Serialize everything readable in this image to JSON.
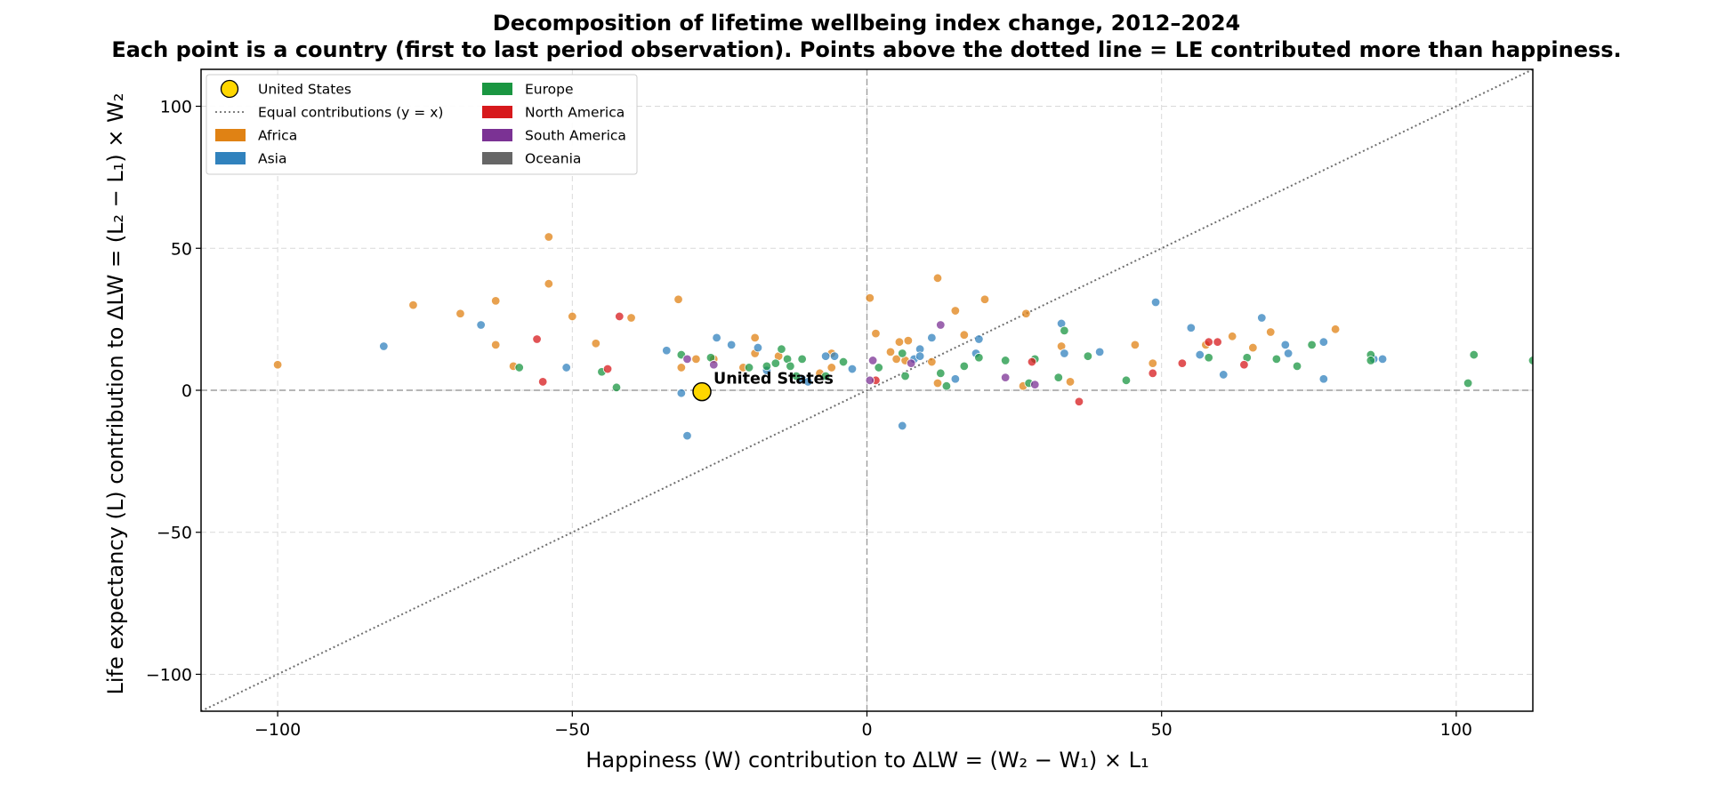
{
  "chart_data": {
    "type": "scatter",
    "title": "Decomposition of lifetime wellbeing index change, 2012–2024",
    "subtitle": "Each point is a country (first to last period observation). Points above the dotted line = LE contributed more than happiness.",
    "xlabel": "Happiness (W) contribution to ΔLW  =  (W₂ − W₁) × L₁",
    "ylabel": "Life expectancy (L) contribution to ΔLW  =  (L₂ − L₁) × W₂",
    "xlim": [
      -113,
      113
    ],
    "ylim": [
      -113,
      113
    ],
    "x_ticks": [
      -100,
      -50,
      0,
      50,
      100
    ],
    "y_ticks": [
      -100,
      -50,
      0,
      50,
      100
    ],
    "x_tick_labels": [
      "−100",
      "−50",
      "0",
      "50",
      "100"
    ],
    "y_tick_labels": [
      "−100",
      "−50",
      "0",
      "50",
      "100"
    ],
    "grid": true,
    "reference_lines": [
      "x = 0",
      "y = 0",
      "y = x"
    ],
    "legend_position": "top-left",
    "legend": [
      {
        "label": "United States",
        "kind": "highlight-marker",
        "color": "#FFD700"
      },
      {
        "label": "Equal contributions (y = x)",
        "kind": "dotted-line",
        "color": "#808080"
      },
      {
        "label": "Africa",
        "kind": "patch",
        "color": "#E08214"
      },
      {
        "label": "Asia",
        "kind": "patch",
        "color": "#3182BD"
      },
      {
        "label": "Europe",
        "kind": "patch",
        "color": "#1A9641"
      },
      {
        "label": "North America",
        "kind": "patch",
        "color": "#D7191C"
      },
      {
        "label": "South America",
        "kind": "patch",
        "color": "#7B3294"
      },
      {
        "label": "Oceania",
        "kind": "patch",
        "color": "#666666"
      }
    ],
    "highlight": {
      "label": "United States",
      "annotation": "United States",
      "x": -28,
      "y": -0.5,
      "color": "#FFD700"
    },
    "series": [
      {
        "name": "Africa",
        "color": "#E08214",
        "points": [
          [
            -100,
            9
          ],
          [
            -77,
            30
          ],
          [
            -69,
            27
          ],
          [
            -63,
            31.5
          ],
          [
            -63,
            16
          ],
          [
            -60,
            8.5
          ],
          [
            -54,
            54
          ],
          [
            -54,
            37.5
          ],
          [
            -50,
            26
          ],
          [
            -46,
            16.5
          ],
          [
            -40,
            25.5
          ],
          [
            -32,
            32
          ],
          [
            -31.5,
            8
          ],
          [
            -29,
            11
          ],
          [
            -26,
            11
          ],
          [
            -21,
            8
          ],
          [
            -19,
            18.5
          ],
          [
            -19,
            13
          ],
          [
            -15,
            12
          ],
          [
            -8,
            6
          ],
          [
            -6,
            13
          ],
          [
            -6,
            8
          ],
          [
            0.5,
            32.5
          ],
          [
            1.5,
            20
          ],
          [
            4,
            13.5
          ],
          [
            5,
            11
          ],
          [
            5.5,
            17
          ],
          [
            6.5,
            10.5
          ],
          [
            7,
            17.5
          ],
          [
            11,
            10
          ],
          [
            12,
            39.5
          ],
          [
            12,
            2.5
          ],
          [
            15,
            28
          ],
          [
            16.5,
            19.5
          ],
          [
            20,
            32
          ],
          [
            26.5,
            1.5
          ],
          [
            27,
            27
          ],
          [
            33,
            15.5
          ],
          [
            34.5,
            3
          ],
          [
            45.5,
            16
          ],
          [
            48.5,
            9.5
          ],
          [
            57.5,
            16
          ],
          [
            62,
            19
          ],
          [
            65.5,
            15
          ],
          [
            68.5,
            20.5
          ],
          [
            79.5,
            21.5
          ]
        ]
      },
      {
        "name": "Asia",
        "color": "#3182BD",
        "points": [
          [
            -82,
            15.5
          ],
          [
            -65.5,
            23
          ],
          [
            -51,
            8
          ],
          [
            -34,
            14
          ],
          [
            -31.5,
            -1
          ],
          [
            -30.5,
            -16
          ],
          [
            -25.5,
            18.5
          ],
          [
            -23,
            16
          ],
          [
            -18.5,
            15
          ],
          [
            -17,
            7
          ],
          [
            -11,
            4
          ],
          [
            -10,
            3
          ],
          [
            -7,
            12
          ],
          [
            -5.5,
            12
          ],
          [
            -2.5,
            7.5
          ],
          [
            6,
            -12.5
          ],
          [
            8,
            11
          ],
          [
            9,
            14.5
          ],
          [
            9,
            12
          ],
          [
            11,
            18.5
          ],
          [
            15,
            4
          ],
          [
            18.5,
            13
          ],
          [
            19,
            18
          ],
          [
            33,
            23.5
          ],
          [
            33.5,
            13
          ],
          [
            39.5,
            13.5
          ],
          [
            49,
            31
          ],
          [
            55,
            22
          ],
          [
            56.5,
            12.5
          ],
          [
            60.5,
            5.5
          ],
          [
            67,
            25.5
          ],
          [
            71,
            16
          ],
          [
            71.5,
            13
          ],
          [
            77.5,
            17
          ],
          [
            77.5,
            4
          ],
          [
            86,
            11
          ],
          [
            87.5,
            11
          ]
        ]
      },
      {
        "name": "Europe",
        "color": "#1A9641",
        "points": [
          [
            -59,
            8
          ],
          [
            -45,
            6.5
          ],
          [
            -42.5,
            1
          ],
          [
            -31.5,
            12.5
          ],
          [
            -26.5,
            11.5
          ],
          [
            -20,
            8
          ],
          [
            -17,
            8.5
          ],
          [
            -15.5,
            9.5
          ],
          [
            -14.5,
            14.5
          ],
          [
            -13.5,
            11
          ],
          [
            -13,
            8.5
          ],
          [
            -12,
            5
          ],
          [
            -11,
            11
          ],
          [
            -7,
            5
          ],
          [
            -4,
            10
          ],
          [
            2,
            8
          ],
          [
            6,
            13
          ],
          [
            6.5,
            5
          ],
          [
            12.5,
            6
          ],
          [
            13.5,
            1.5
          ],
          [
            16.5,
            8.5
          ],
          [
            19,
            11.5
          ],
          [
            23.5,
            10.5
          ],
          [
            27.5,
            2.5
          ],
          [
            28.5,
            11
          ],
          [
            32.5,
            4.5
          ],
          [
            33.5,
            21
          ],
          [
            37.5,
            12
          ],
          [
            44,
            3.5
          ],
          [
            58,
            11.5
          ],
          [
            64.5,
            11.5
          ],
          [
            69.5,
            11
          ],
          [
            73,
            8.5
          ],
          [
            75.5,
            16
          ],
          [
            85.5,
            12.5
          ],
          [
            85.5,
            10.5
          ],
          [
            102,
            2.5
          ],
          [
            103,
            12.5
          ],
          [
            113,
            10.5
          ]
        ]
      },
      {
        "name": "North America",
        "color": "#D7191C",
        "points": [
          [
            -56,
            18
          ],
          [
            -55,
            3
          ],
          [
            -44,
            7.5
          ],
          [
            -42,
            26
          ],
          [
            1.5,
            3.5
          ],
          [
            28,
            10
          ],
          [
            36,
            -4
          ],
          [
            48.5,
            6
          ],
          [
            53.5,
            9.5
          ],
          [
            58,
            17
          ],
          [
            59.5,
            17
          ],
          [
            64,
            9
          ]
        ]
      },
      {
        "name": "South America",
        "color": "#7B3294",
        "points": [
          [
            -30.5,
            11
          ],
          [
            -26,
            9
          ],
          [
            0.5,
            3.5
          ],
          [
            1,
            10.5
          ],
          [
            7.5,
            9.5
          ],
          [
            12.5,
            23
          ],
          [
            23.5,
            4.5
          ],
          [
            28.5,
            2
          ]
        ]
      },
      {
        "name": "Oceania",
        "color": "#666666",
        "points": []
      }
    ]
  }
}
